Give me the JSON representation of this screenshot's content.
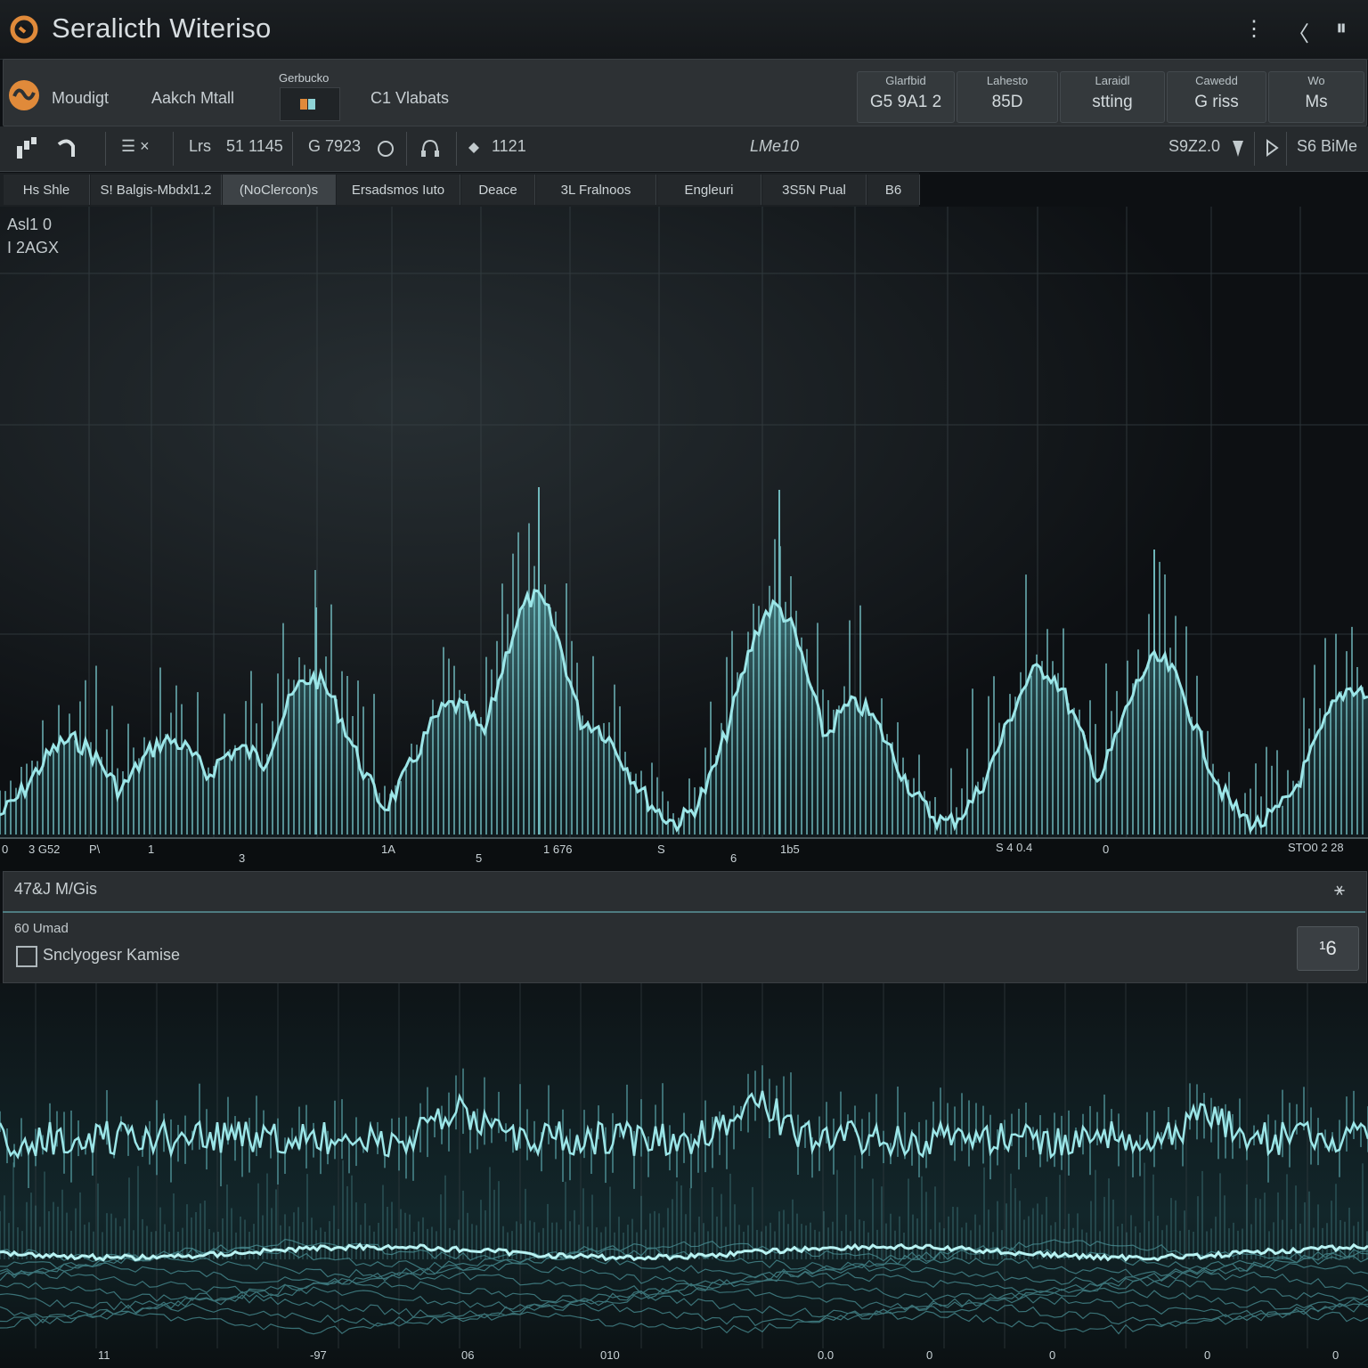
{
  "window": {
    "title": "Seralicth Witeriso",
    "controls": [
      "⋮",
      "〈",
      "⏸"
    ]
  },
  "header": {
    "mode_label": "Moudigt",
    "secondary_label": "Aakch Mtall",
    "swatch_label": "Gerbucko",
    "channel_label": "C1 Vlabats",
    "stats": [
      {
        "label": "Glarfbid",
        "value": "G5 9A1 2"
      },
      {
        "label": "Lahesto",
        "value": "85D"
      },
      {
        "label": "Laraidl",
        "value": "stting"
      },
      {
        "label": "Cawedd",
        "value": "G riss"
      },
      {
        "label": "Wo",
        "value": "Ms"
      }
    ]
  },
  "toolbar": {
    "menu_glyph": "☰ ×",
    "item_a": "Lrs",
    "item_b": "51 1145",
    "item_c": "G 7923",
    "item_d": "1121",
    "center_label": "LMe10",
    "right_value": "S9Z2.0",
    "right_label": "S6 BiMe"
  },
  "tabs": [
    {
      "label": "Hs Shle",
      "active": false
    },
    {
      "label": "S! Balgis-Mbdxl1.2",
      "active": false
    },
    {
      "label": "(NoClercon)s",
      "active": true
    },
    {
      "label": "Ersadsmos Iuto",
      "active": false
    },
    {
      "label": "Deace",
      "active": false
    },
    {
      "label": "3L Fralnoos",
      "active": false
    },
    {
      "label": "Engleuri",
      "active": false
    },
    {
      "label": "3S5N Pual",
      "active": false
    },
    {
      "label": "B6",
      "active": false
    }
  ],
  "plot1": {
    "corner_line1": "Asl1 0",
    "corner_line2": "I 2AGX",
    "axis_labels": [
      "0",
      "3 G52",
      "P\\",
      "1",
      "3",
      "1A",
      "5",
      "1 676",
      "6",
      "S",
      "1b5",
      "S 4 0.4",
      "0",
      "STO0 2 28"
    ]
  },
  "panel": {
    "title": "47&J M/Gis",
    "subtitle": "60 Umad",
    "option_label": "Snclyogesr Kamise",
    "button_label": "¹6",
    "pin_glyph": "⚹"
  },
  "plot2": {
    "axis_labels": [
      "11",
      "-97",
      "06",
      "010",
      "0.0",
      "0",
      "0",
      "0",
      "0"
    ]
  },
  "colors": {
    "accent": "#e08a3a",
    "waveform": "#8fe0e2",
    "waveform_dim": "#2f6b70",
    "background": "#0d1013",
    "panel": "#2d3134"
  },
  "icons": {
    "app_logo": "app-logo-icon",
    "mode": "waveform-mode-icon",
    "toolbar_left": [
      "chart-icon",
      "undo-icon"
    ],
    "toolbar_mid": [
      "circle-icon",
      "headphones-icon",
      "marker-icon"
    ],
    "toolbar_right": [
      "pin-icon",
      "play-icon"
    ]
  }
}
